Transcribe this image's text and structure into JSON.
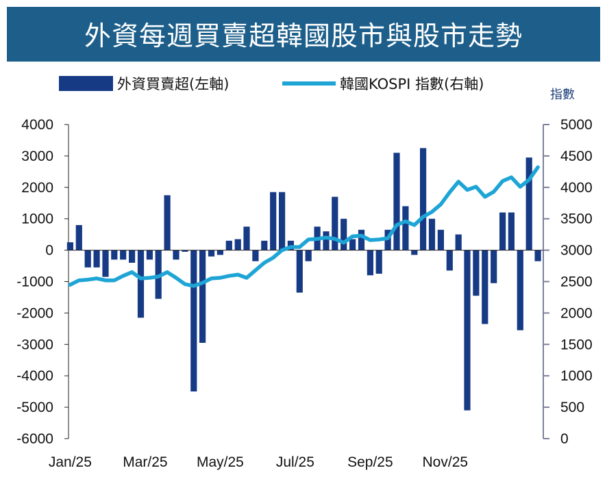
{
  "title": "外資每週買賣超韓國股市與股市走勢",
  "colors": {
    "title_bg": "#1d5f8a",
    "bar": "#173a85",
    "line": "#1ea5d6",
    "right_axis": "#7b7f9e"
  },
  "chart_data": {
    "type": "bar+line",
    "title": "外資每週買賣超韓國股市與股市走勢",
    "legend": {
      "bar_label": "外資買賣超(左軸)",
      "line_label": "韓國KOSPI 指數(右軸)",
      "placement": "top"
    },
    "right_axis_unit": "指數",
    "x_tick_labels": [
      "Jan/25",
      "Mar/25",
      "May/25",
      "Jul/25",
      "Sep/25",
      "Nov/25"
    ],
    "left_axis": {
      "min": -6000,
      "max": 4000,
      "ticks": [
        4000,
        3000,
        2000,
        1000,
        0,
        -1000,
        -2000,
        -3000,
        -4000,
        -5000,
        -6000
      ]
    },
    "right_axis": {
      "min": 0,
      "max": 5000,
      "ticks": [
        5000,
        4500,
        4000,
        3500,
        3000,
        2500,
        2000,
        1500,
        1000,
        500,
        0
      ]
    },
    "series": [
      {
        "name": "外資買賣超(左軸)",
        "kind": "bar",
        "values": [
          250,
          800,
          -550,
          -550,
          -850,
          -300,
          -300,
          -400,
          -2150,
          -300,
          -1550,
          1750,
          -300,
          -50,
          -4500,
          -2950,
          -200,
          -150,
          300,
          350,
          750,
          -350,
          300,
          1850,
          1850,
          300,
          -1350,
          -350,
          750,
          600,
          1700,
          1000,
          350,
          650,
          -800,
          -750,
          650,
          3100,
          1400,
          -150,
          3250,
          1000,
          650,
          -650,
          500,
          -5100,
          -1450,
          -2350,
          -1050,
          1200,
          1200,
          -2550,
          2950,
          -350
        ]
      },
      {
        "name": "韓國KOSPI 指數(右軸)",
        "kind": "line",
        "values": [
          2450,
          2520,
          2530,
          2550,
          2520,
          2520,
          2590,
          2650,
          2550,
          2560,
          2580,
          2650,
          2560,
          2460,
          2430,
          2480,
          2550,
          2560,
          2590,
          2610,
          2560,
          2680,
          2800,
          2880,
          3000,
          3050,
          3050,
          3170,
          3180,
          3200,
          3180,
          3120,
          3220,
          3230,
          3160,
          3170,
          3190,
          3400,
          3460,
          3400,
          3530,
          3610,
          3730,
          3920,
          4090,
          3960,
          4010,
          3850,
          3930,
          4100,
          4160,
          4010,
          4120,
          4320
        ]
      }
    ]
  }
}
